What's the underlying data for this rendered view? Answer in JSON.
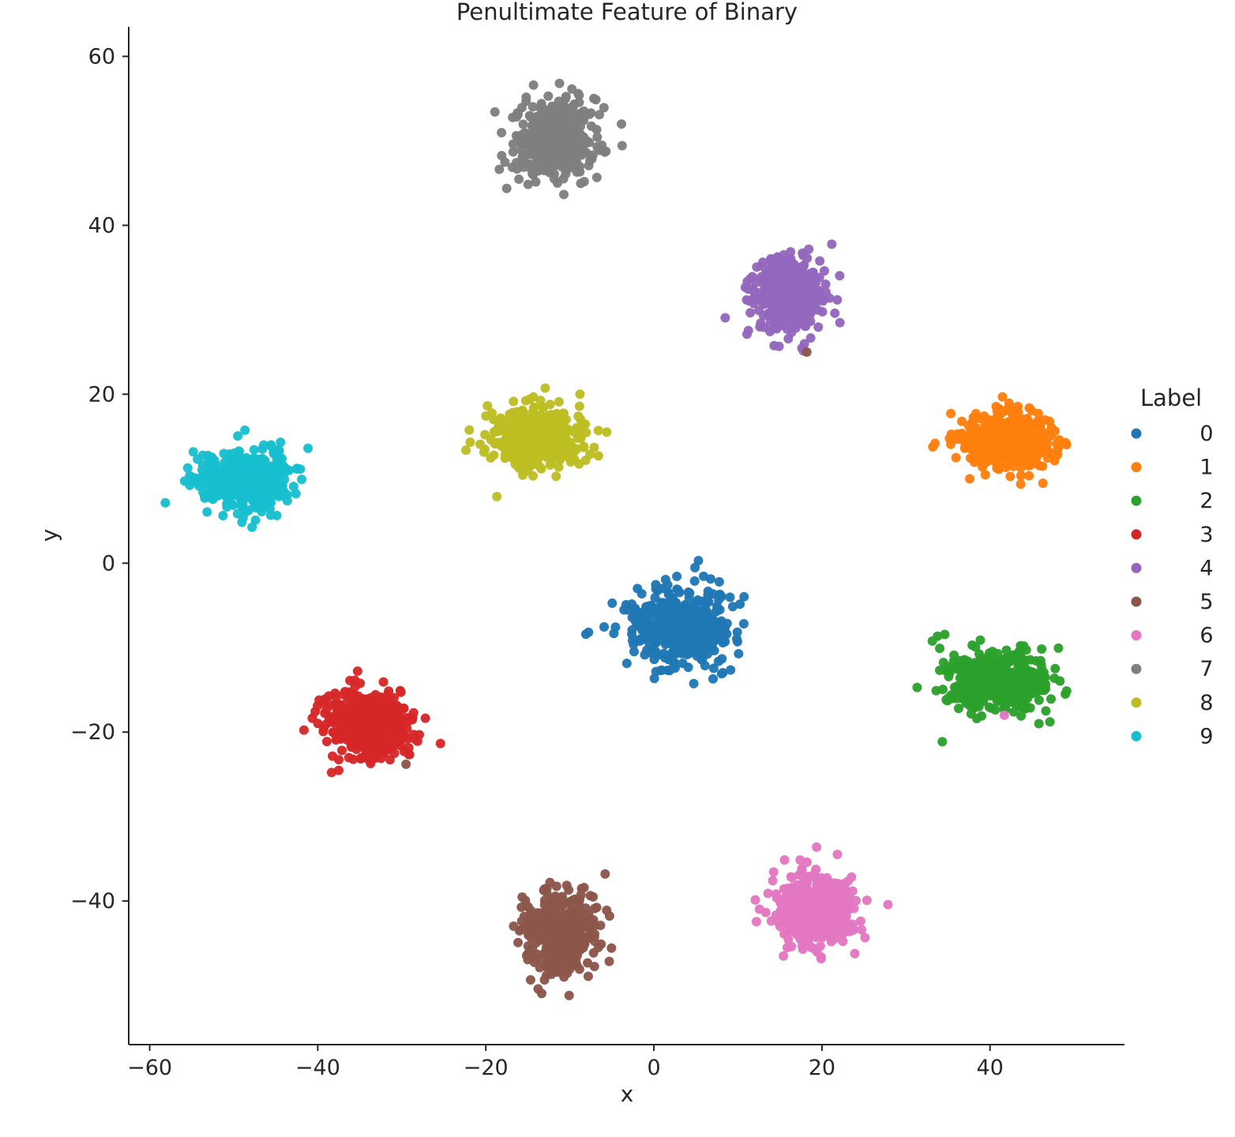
{
  "chart_data": {
    "type": "scatter",
    "title": "Penultimate Feature of Binary",
    "xlabel": "x",
    "ylabel": "y",
    "xlim": [
      -62.5,
      56
    ],
    "ylim": [
      -57,
      63.5
    ],
    "xticks": [
      -60,
      -40,
      -20,
      0,
      20,
      40
    ],
    "yticks": [
      -40,
      -20,
      0,
      20,
      40,
      60
    ],
    "xtick_labels": [
      "−60",
      "−40",
      "−20",
      "0",
      "20",
      "40"
    ],
    "ytick_labels": [
      "−40",
      "−20",
      "0",
      "20",
      "40",
      "60"
    ],
    "grid": false,
    "legend": {
      "title": "Label",
      "placement": "right"
    },
    "series": [
      {
        "name": "0",
        "color": "#1f77b4",
        "center": [
          3,
          -7.5
        ],
        "spread": [
          6.0,
          4.0
        ],
        "count": 420,
        "outliers": [
          [
            5.3,
            0.3
          ]
        ]
      },
      {
        "name": "1",
        "color": "#ff7f0e",
        "center": [
          42,
          14.5
        ],
        "spread": [
          5.0,
          3.2
        ],
        "count": 420,
        "outliers": []
      },
      {
        "name": "2",
        "color": "#2ca02c",
        "center": [
          41,
          -14
        ],
        "spread": [
          5.5,
          3.4
        ],
        "count": 420,
        "outliers": []
      },
      {
        "name": "3",
        "color": "#d62728",
        "center": [
          -34,
          -19
        ],
        "spread": [
          4.6,
          3.5
        ],
        "count": 420,
        "outliers": []
      },
      {
        "name": "4",
        "color": "#9467bd",
        "center": [
          16,
          32
        ],
        "spread": [
          3.8,
          4.0
        ],
        "count": 420,
        "outliers": []
      },
      {
        "name": "5",
        "color": "#8c564b",
        "center": [
          -11,
          -44
        ],
        "spread": [
          3.8,
          4.2
        ],
        "count": 420,
        "outliers": [
          [
            18.2,
            25
          ],
          [
            -29.5,
            -23.8
          ],
          [
            -5.8,
            -36.8
          ]
        ]
      },
      {
        "name": "6",
        "color": "#e377c2",
        "center": [
          19,
          -41
        ],
        "spread": [
          4.0,
          3.8
        ],
        "count": 420,
        "outliers": [
          [
            41.7,
            -18
          ]
        ]
      },
      {
        "name": "7",
        "color": "#7f7f7f",
        "center": [
          -12,
          50.5
        ],
        "spread": [
          4.5,
          4.2
        ],
        "count": 420,
        "outliers": []
      },
      {
        "name": "8",
        "color": "#bcbd22",
        "center": [
          -14,
          15
        ],
        "spread": [
          5.2,
          3.4
        ],
        "count": 420,
        "outliers": []
      },
      {
        "name": "9",
        "color": "#17becf",
        "center": [
          -49,
          10
        ],
        "spread": [
          5.3,
          3.3
        ],
        "count": 420,
        "outliers": []
      }
    ]
  }
}
